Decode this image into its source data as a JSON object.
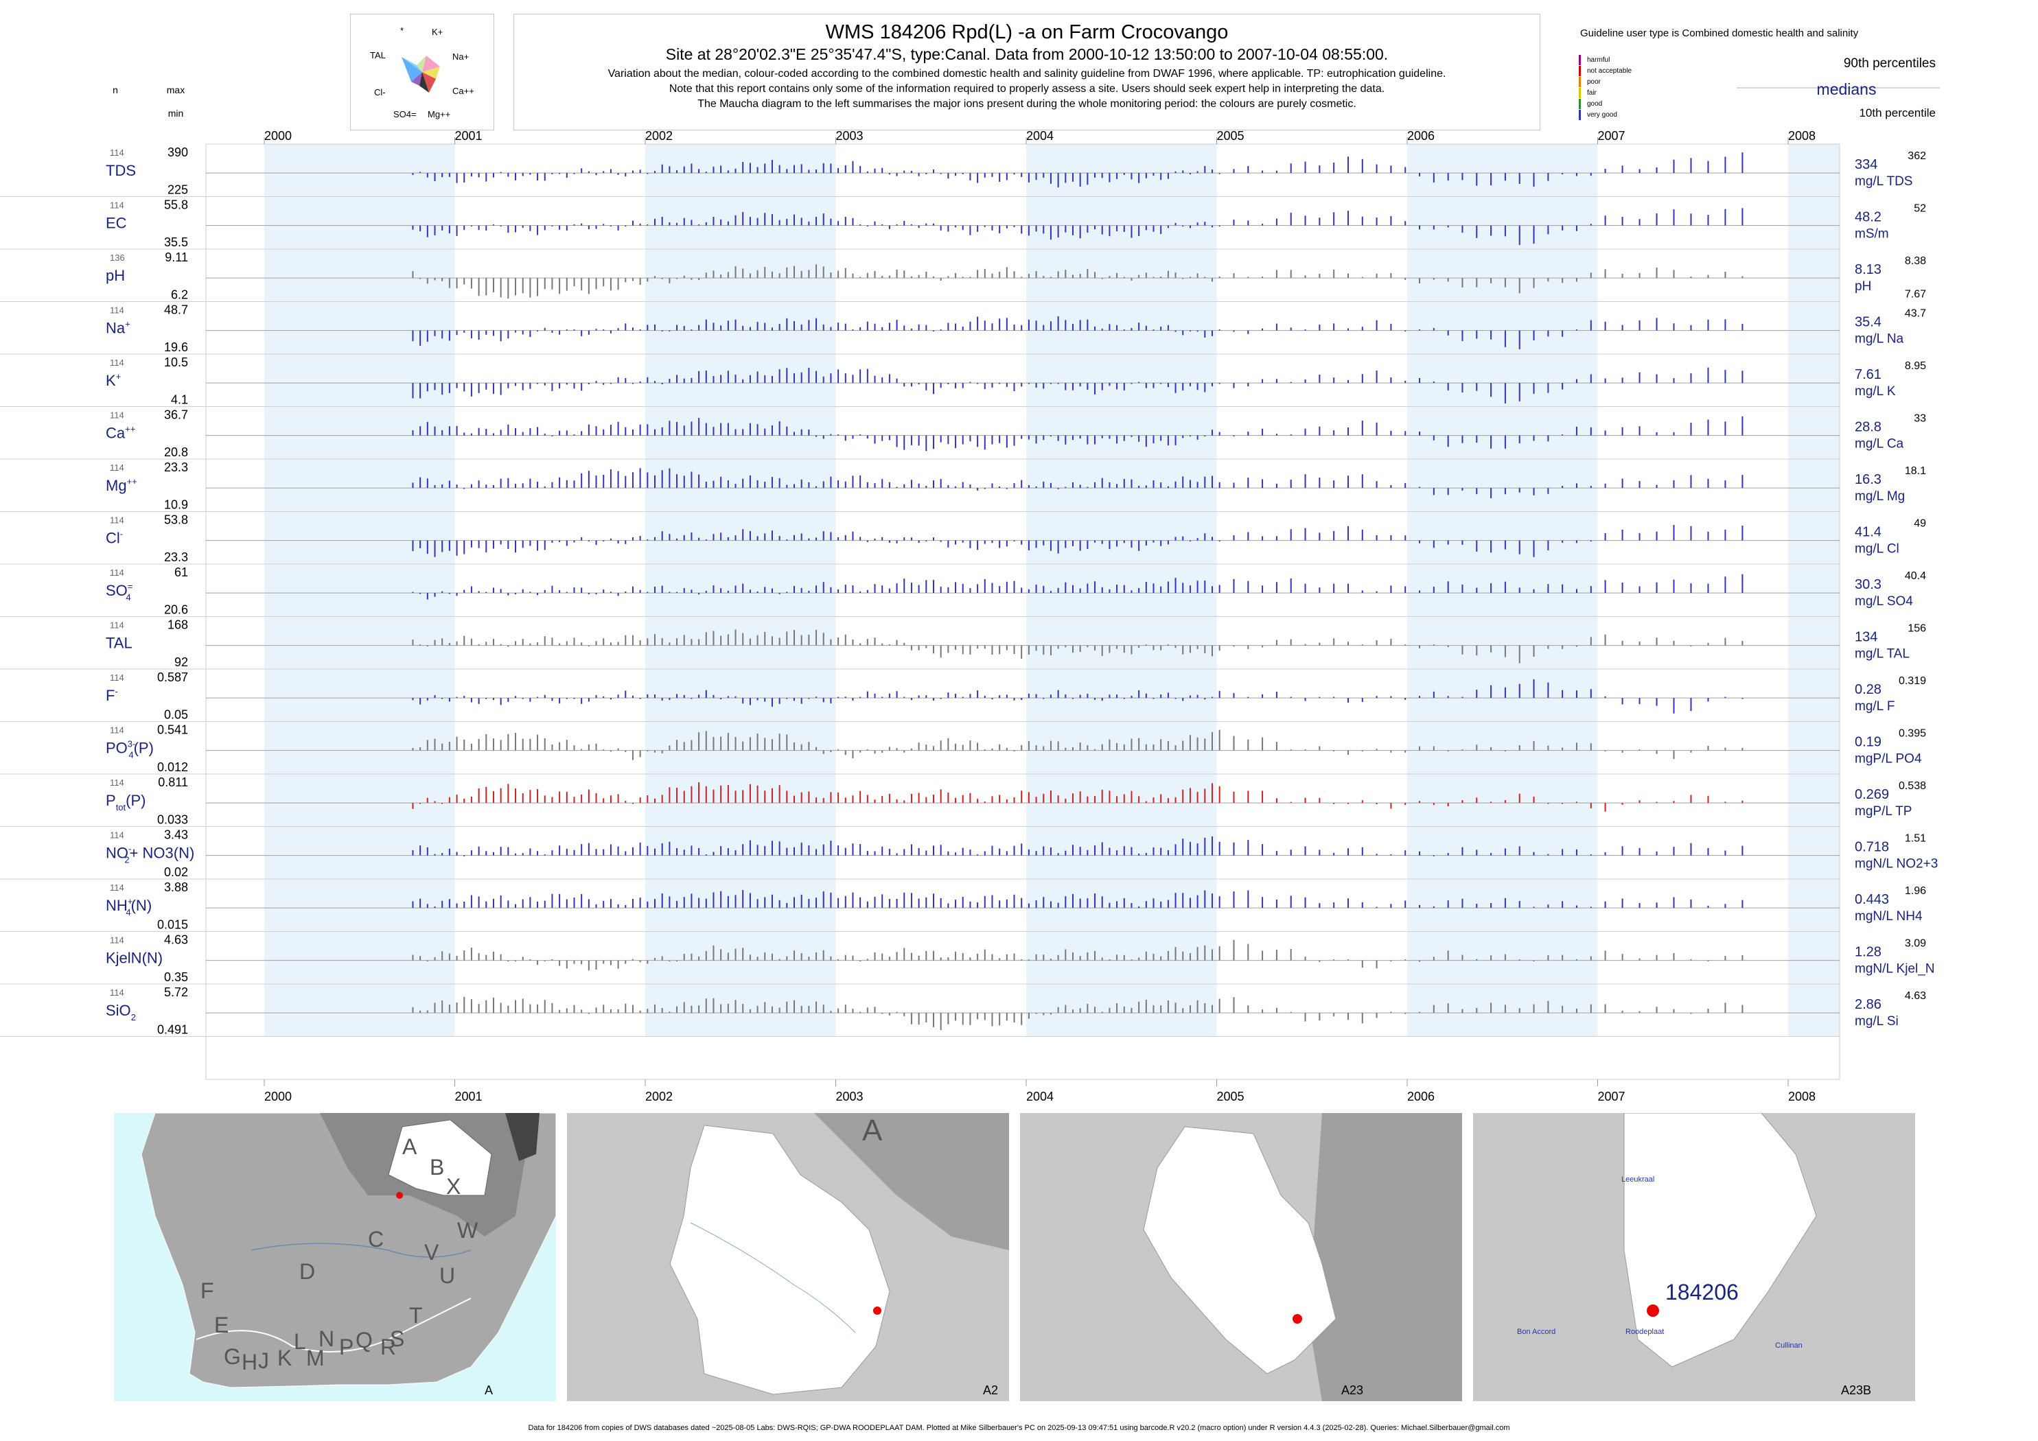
{
  "title": {
    "line1": "WMS 184206  Rpd(L) -a on Farm Crocovango",
    "line2": "Site at 28°20'02.3\"E 25°35'47.4\"S, type:Canal.  Data from 2000-10-12 13:50:00 to 2007-10-04 08:55:00.",
    "line3": "Variation about the median,  colour-coded according to the combined domestic health and salinity guideline from DWAF 1996, where applicable. TP: eutrophication guideline.",
    "line4": "Note that this report contains only some of the information required to properly assess a site. Users should seek expert help in interpreting the data.",
    "line5": "The Maucha diagram to the left summarises the major ions present during the whole monitoring period: the colours are purely cosmetic."
  },
  "maucha": {
    "labels": [
      "*",
      "K+",
      "TAL",
      "Na+",
      "Cl-",
      "Ca++",
      "SO4=",
      "Mg++"
    ]
  },
  "legend": {
    "title": "Guideline user type is Combined domestic health and salinity",
    "classes": [
      {
        "label": "harmful",
        "color": "#a0007a"
      },
      {
        "label": "not acceptable",
        "color": "#d00000"
      },
      {
        "label": "poor",
        "color": "#e88000"
      },
      {
        "label": "fair",
        "color": "#d8c800"
      },
      {
        "label": "good",
        "color": "#2e8b2e"
      },
      {
        "label": "very good",
        "color": "#3333bb"
      }
    ],
    "p90": "90th percentiles",
    "medians": "medians",
    "p10": "10th percentile"
  },
  "header_cols": {
    "n": "n",
    "max": "max",
    "min": "min"
  },
  "chart_data": {
    "type": "bar",
    "x_axis": {
      "range": [
        2000,
        2008
      ],
      "ticks": [
        "2000",
        "2001",
        "2002",
        "2003",
        "2004",
        "2005",
        "2006",
        "2007",
        "2008"
      ]
    },
    "shaded_years": [
      "2000",
      "2002",
      "2004",
      "2006",
      "2008"
    ],
    "variables": [
      {
        "key": "TDS",
        "label": "TDS",
        "sup": "",
        "sub": "",
        "n": "114",
        "max": "390",
        "min": "225",
        "median": "334",
        "unit": "mg/L TDS",
        "p90": "362",
        "p10": "",
        "color": "#3333bb",
        "pattern": [
          -0.2,
          -0.3,
          -0.1,
          0.1,
          0.3,
          0.4,
          0.3,
          -0.1,
          -0.3,
          -0.5,
          -0.2,
          0.2,
          0.4,
          0.6,
          -0.4,
          -0.7,
          0.2,
          0.4,
          0.9
        ]
      },
      {
        "key": "EC",
        "label": "EC",
        "sup": "",
        "sub": "",
        "n": "114",
        "max": "55.8",
        "min": "35.5",
        "median": "48.2",
        "unit": "mS/m",
        "p90": "52",
        "p10": "",
        "color": "#3333bb",
        "pattern": [
          -0.4,
          -0.2,
          -0.2,
          0.1,
          0.3,
          0.5,
          0.2,
          -0.1,
          -0.3,
          -0.5,
          -0.3,
          0.2,
          0.4,
          0.6,
          -0.3,
          -0.9,
          0.3,
          0.5,
          0.8
        ]
      },
      {
        "key": "pH",
        "label": "pH",
        "sup": "",
        "sub": "",
        "n": "136",
        "max": "9.11",
        "min": "6.2",
        "median": "8.13",
        "unit": "pH",
        "p90": "8.38",
        "p10": "7.67",
        "color": "#777777",
        "pattern": [
          0.2,
          -0.9,
          -0.7,
          -0.3,
          0.2,
          0.5,
          0.3,
          0.1,
          0.3,
          0.2,
          0.1,
          0.1,
          0.2,
          0.3,
          -0.4,
          -0.5,
          0.2,
          0.3,
          0.2
        ]
      },
      {
        "key": "Na",
        "label": "Na",
        "sup": "+",
        "sub": "",
        "n": "114",
        "max": "48.7",
        "min": "19.6",
        "median": "35.4",
        "unit": "mg/L Na",
        "p90": "43.7",
        "p10": "",
        "color": "#3333bb",
        "pattern": [
          -0.5,
          -0.3,
          -0.1,
          0.1,
          0.3,
          0.4,
          0.3,
          0.2,
          0.5,
          0.4,
          0.1,
          -0.2,
          0.2,
          0.4,
          -0.3,
          -0.7,
          0.3,
          0.5,
          0.5
        ]
      },
      {
        "key": "K",
        "label": "K",
        "sup": "+",
        "sub": "",
        "n": "114",
        "max": "10.5",
        "min": "4.1",
        "median": "7.61",
        "unit": "mg/L K",
        "p90": "8.95",
        "p10": "",
        "color": "#3333bb",
        "pattern": [
          -0.6,
          -0.4,
          -0.2,
          0.1,
          0.4,
          0.5,
          0.6,
          -0.3,
          -0.1,
          -0.3,
          -0.2,
          -0.3,
          0.3,
          0.4,
          -0.2,
          -0.9,
          0.3,
          0.5,
          0.7
        ]
      },
      {
        "key": "Ca",
        "label": "Ca",
        "sup": "++",
        "sub": "",
        "n": "114",
        "max": "36.7",
        "min": "20.8",
        "median": "28.8",
        "unit": "mg/L Ca",
        "p90": "33",
        "p10": "",
        "color": "#3333bb",
        "pattern": [
          0.4,
          0.3,
          0.2,
          0.5,
          0.6,
          0.4,
          -0.2,
          -0.6,
          -0.4,
          -0.2,
          -0.4,
          0.1,
          0.3,
          0.5,
          -0.3,
          -0.6,
          0.5,
          0.3,
          0.9
        ]
      },
      {
        "key": "Mg",
        "label": "Mg",
        "sup": "++",
        "sub": "",
        "n": "114",
        "max": "23.3",
        "min": "10.9",
        "median": "16.3",
        "unit": "mg/L Mg",
        "p90": "18.1",
        "p10": "",
        "color": "#3333bb",
        "pattern": [
          0.3,
          0.2,
          0.4,
          0.9,
          0.5,
          0.3,
          0.4,
          0.2,
          0.1,
          0.2,
          0.3,
          0.4,
          0.5,
          0.4,
          -0.2,
          -0.5,
          0.4,
          0.3,
          0.5
        ]
      },
      {
        "key": "Cl",
        "label": "Cl",
        "sup": "-",
        "sub": "",
        "n": "114",
        "max": "53.8",
        "min": "23.3",
        "median": "41.4",
        "unit": "mg/L Cl",
        "p90": "49",
        "p10": "",
        "color": "#3333bb",
        "pattern": [
          -0.6,
          -0.5,
          -0.2,
          0.1,
          0.3,
          0.3,
          0.2,
          -0.1,
          -0.3,
          -0.4,
          -0.2,
          0.3,
          0.4,
          0.5,
          -0.3,
          -0.8,
          0.3,
          0.5,
          0.6
        ]
      },
      {
        "key": "SO4",
        "label": "SO",
        "sup": "=",
        "sub": "4",
        "n": "114",
        "max": "61",
        "min": "20.6",
        "median": "30.3",
        "unit": "mg/L SO4",
        "p90": "40.4",
        "p10": "",
        "color": "#3333bb",
        "pattern": [
          -0.1,
          0.1,
          0.1,
          0.1,
          0.2,
          0.2,
          0.3,
          0.5,
          0.4,
          0.3,
          0.4,
          0.6,
          0.4,
          0.3,
          0.3,
          0.4,
          0.4,
          0.4,
          0.9
        ]
      },
      {
        "key": "TAL",
        "label": "TAL",
        "sup": "",
        "sub": "",
        "n": "114",
        "max": "168",
        "min": "92",
        "median": "134",
        "unit": "mg/L TAL",
        "p90": "156",
        "p10": "",
        "color": "#777777",
        "pattern": [
          0.2,
          0.2,
          0.2,
          0.3,
          0.5,
          0.6,
          0.4,
          -0.3,
          -0.4,
          -0.3,
          -0.2,
          -0.3,
          0.2,
          0.3,
          -0.3,
          -0.6,
          0.3,
          0.2,
          0.3
        ]
      },
      {
        "key": "F",
        "label": "F",
        "sup": "-",
        "sub": "",
        "n": "114",
        "max": "0.587",
        "min": "0.05",
        "median": "0.28",
        "unit": "mg/L F",
        "p90": "0.319",
        "p10": "",
        "color": "#3333bb",
        "pattern": [
          -0.1,
          -0.1,
          -0.1,
          0.1,
          0.1,
          -0.3,
          0.1,
          0.1,
          0.1,
          0.1,
          0.1,
          0.1,
          0.1,
          -0.1,
          0.1,
          0.9,
          0.1,
          -0.6,
          0.1
        ]
      },
      {
        "key": "PO4",
        "label": "PO",
        "sup": "3-",
        "sub": "4",
        "suffix": "(P)",
        "n": "114",
        "max": "0.541",
        "min": "0.012",
        "median": "0.19",
        "unit": "mgP/L PO4",
        "p90": "0.395",
        "p10": "",
        "color": "#777777",
        "pattern": [
          0.2,
          0.7,
          0.5,
          -0.3,
          0.8,
          0.6,
          -0.3,
          0.4,
          0.2,
          0.3,
          0.4,
          0.8,
          0.2,
          -0.2,
          0.2,
          0.2,
          0.2,
          -0.2,
          0.2
        ]
      },
      {
        "key": "TP",
        "label": "P",
        "sup": "",
        "sub": "tot",
        "suffix": "(P)",
        "n": "114",
        "max": "0.811",
        "min": "0.033",
        "median": "0.269",
        "unit": "mgP/L TP",
        "p90": "0.538",
        "p10": "",
        "color": "#cc2222",
        "pattern": [
          -0.2,
          0.7,
          0.5,
          0.2,
          0.9,
          0.6,
          0.3,
          0.4,
          0.3,
          0.5,
          0.3,
          0.8,
          0.2,
          -0.2,
          0.1,
          0.2,
          -0.2,
          0.2,
          0.1
        ]
      },
      {
        "key": "NOx",
        "label": "NO",
        "sup": "-",
        "sub": "2",
        "suffix": "+ NO3(N)",
        "n": "114",
        "max": "3.43",
        "min": "0.02",
        "median": "0.718",
        "unit": "mgN/L NO2+3",
        "p90": "1.51",
        "p10": "",
        "color": "#3333bb",
        "pattern": [
          0.3,
          0.2,
          0.3,
          0.5,
          0.3,
          0.6,
          0.4,
          0.3,
          0.3,
          0.4,
          0.3,
          0.9,
          0.2,
          0.2,
          0.2,
          0.2,
          0.3,
          0.3,
          0.4
        ]
      },
      {
        "key": "NH4",
        "label": "NH",
        "sup": "+",
        "sub": "4",
        "suffix": "(N)",
        "n": "114",
        "max": "3.88",
        "min": "0.015",
        "median": "0.443",
        "unit": "mgN/L NH4",
        "p90": "1.96",
        "p10": "",
        "color": "#3333bb",
        "pattern": [
          0.3,
          0.4,
          0.5,
          0.3,
          0.7,
          0.5,
          0.6,
          0.5,
          0.4,
          0.5,
          0.3,
          0.9,
          0.3,
          0.3,
          0.2,
          0.3,
          0.2,
          0.3,
          0.3
        ]
      },
      {
        "key": "KjelN",
        "label": "KjelN(N)",
        "sup": "",
        "sub": "",
        "n": "114",
        "max": "4.63",
        "min": "0.35",
        "median": "1.28",
        "unit": "mgN/L Kjel_N",
        "p90": "3.09",
        "p10": "",
        "color": "#777777",
        "pattern": [
          0.2,
          0.4,
          -0.3,
          -0.2,
          0.5,
          0.3,
          0.2,
          0.4,
          0.2,
          0.3,
          0.2,
          0.9,
          0.2,
          -0.2,
          0.2,
          0.2,
          0.2,
          0.2,
          0.2
        ]
      },
      {
        "key": "SiO2",
        "label": "SiO",
        "sup": "",
        "sub": "2",
        "n": "114",
        "max": "5.72",
        "min": "0.491",
        "median": "2.86",
        "unit": "mg/L Si",
        "p90": "4.63",
        "p10": "",
        "color": "#777777",
        "pattern": [
          0.2,
          0.7,
          0.3,
          0.2,
          0.5,
          0.4,
          0.3,
          -0.6,
          -0.5,
          0.3,
          0.4,
          0.6,
          -0.2,
          -0.3,
          0.3,
          0.5,
          0.2,
          0.2,
          0.4
        ]
      }
    ]
  },
  "maps": [
    {
      "panel": "A",
      "labels": [
        "A",
        "B",
        "X",
        "C",
        "W",
        "D",
        "V",
        "U",
        "T",
        "S",
        "R",
        "Q",
        "P",
        "N",
        "M",
        "L",
        "K",
        "J",
        "H",
        "G",
        "E",
        "F"
      ]
    },
    {
      "panel": "A2",
      "labels": [
        "A"
      ]
    },
    {
      "panel": "A23",
      "labels": []
    },
    {
      "panel": "A23B",
      "labels": [
        "184206",
        "Leeukraal",
        "Bon Accord",
        "Roodeplaat",
        "Cullinan"
      ]
    }
  ],
  "footer": "Data for 184206 from copies of DWS databases dated ~2025-08-05 Labs: DWS-RQIS; GP-DWA ROODEPLAAT DAM. Plotted at Mike Silberbauer's PC on 2025-09-13 09:47:51 using barcode.R v20.2 (macro option) under R version 4.4.3 (2025-02-28). Queries: Michael.Silberbauer@gmail.com"
}
